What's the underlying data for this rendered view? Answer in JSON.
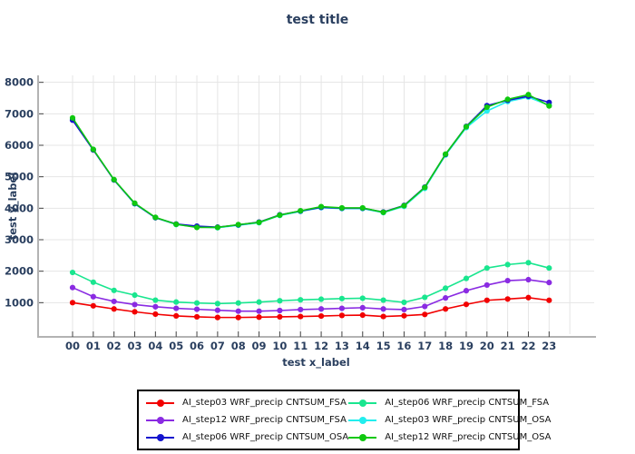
{
  "title": "test title",
  "chart_data": {
    "type": "line",
    "title": "test title",
    "xlabel": "test x_label",
    "ylabel": "test y_label",
    "x": [
      "00",
      "01",
      "02",
      "03",
      "04",
      "05",
      "06",
      "07",
      "08",
      "09",
      "10",
      "11",
      "12",
      "13",
      "14",
      "15",
      "16",
      "17",
      "18",
      "19",
      "20",
      "21",
      "22",
      "23"
    ],
    "ylim": [
      0,
      8400
    ],
    "yticks": [
      1000,
      2000,
      3000,
      4000,
      5000,
      6000,
      7000,
      8000
    ],
    "grid": true,
    "legend_position": "bottom-center-boxed",
    "legend_order": [
      0,
      2,
      4,
      1,
      3,
      5
    ],
    "series": [
      {
        "name": "AI_step03 WRF_precip CNTSUM_FSA",
        "color": "#f20000",
        "values": [
          1000,
          900,
          800,
          710,
          635,
          580,
          550,
          530,
          530,
          540,
          550,
          560,
          575,
          595,
          605,
          560,
          585,
          625,
          800,
          945,
          1075,
          1115,
          1160,
          1075
        ]
      },
      {
        "name": "AI_step06 WRF_precip CNTSUM_FSA",
        "color": "#19e68f",
        "values": [
          1960,
          1650,
          1390,
          1240,
          1080,
          1020,
          990,
          970,
          990,
          1020,
          1060,
          1090,
          1110,
          1130,
          1140,
          1080,
          1010,
          1170,
          1460,
          1770,
          2100,
          2210,
          2270,
          2100
        ]
      },
      {
        "name": "AI_step12 WRF_precip CNTSUM_FSA",
        "color": "#8a2be2",
        "values": [
          1480,
          1190,
          1040,
          940,
          870,
          820,
          790,
          760,
          730,
          730,
          750,
          780,
          800,
          820,
          840,
          800,
          780,
          880,
          1150,
          1380,
          1560,
          1700,
          1730,
          1640
        ]
      },
      {
        "name": "AI_step03 WRF_precip CNTSUM_OSA",
        "color": "#22eeee",
        "values": [
          6830,
          5860,
          4900,
          4140,
          3700,
          3480,
          3410,
          3380,
          3460,
          3540,
          3770,
          3900,
          4020,
          3990,
          3990,
          3860,
          4060,
          4630,
          5690,
          6560,
          7090,
          7390,
          7530,
          7270
        ]
      },
      {
        "name": "AI_step06 WRF_precip CNTSUM_OSA",
        "color": "#1414ce",
        "values": [
          6800,
          5850,
          4900,
          4150,
          3700,
          3500,
          3430,
          3400,
          3470,
          3560,
          3790,
          3910,
          4030,
          4000,
          4000,
          3880,
          4090,
          4670,
          5710,
          6600,
          7260,
          7430,
          7560,
          7360
        ]
      },
      {
        "name": "AI_step12 WRF_precip CNTSUM_OSA",
        "color": "#0fc80f",
        "values": [
          6870,
          5870,
          4910,
          4160,
          3710,
          3490,
          3390,
          3390,
          3480,
          3550,
          3780,
          3920,
          4050,
          4010,
          4010,
          3870,
          4080,
          4660,
          5720,
          6590,
          7210,
          7460,
          7610,
          7250
        ]
      }
    ],
    "style": {
      "text_color": "#2a3f5f",
      "grid_color": "#e5e5e5",
      "spine_color": "#b3b3b3",
      "tick_color": "#444444",
      "legend_border_color": "#000000"
    }
  }
}
